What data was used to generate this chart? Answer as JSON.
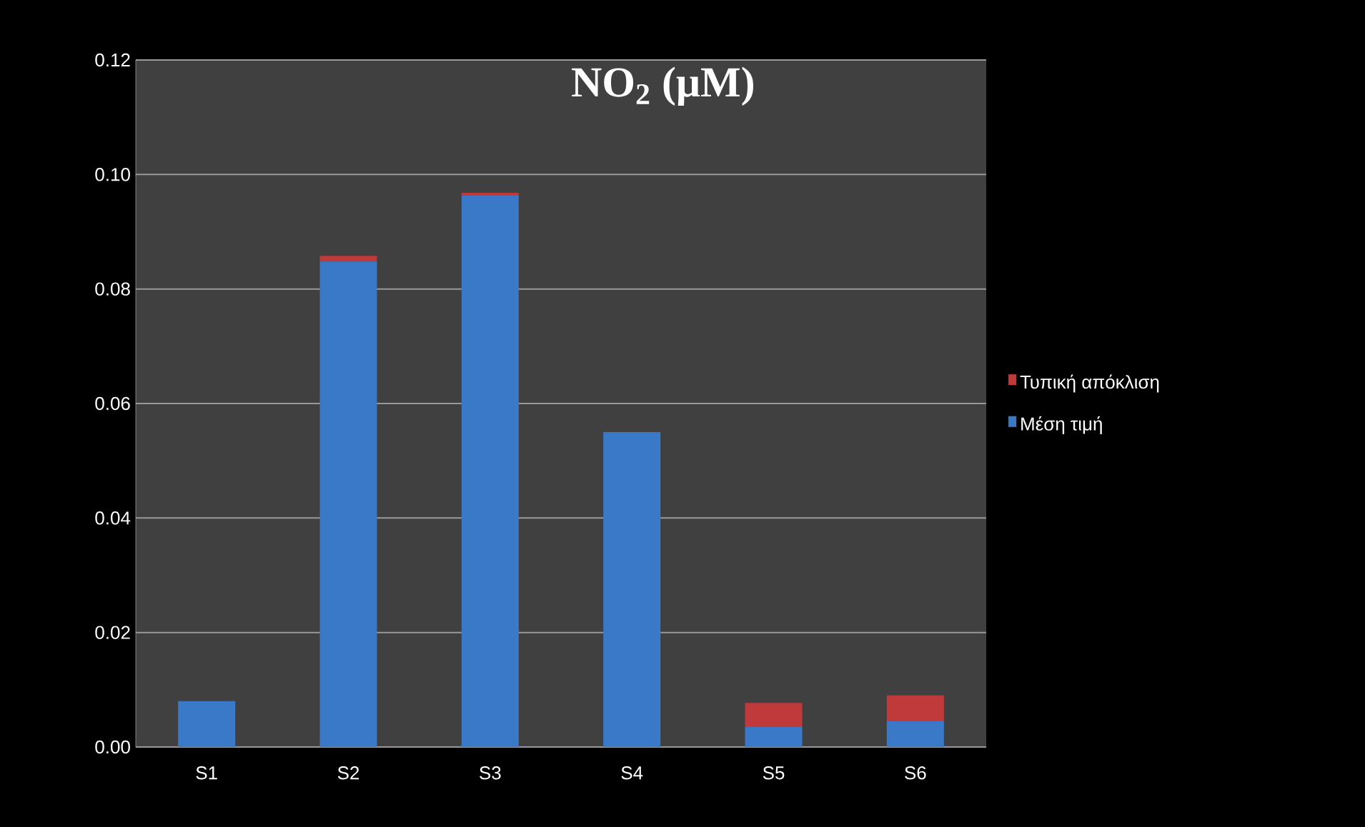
{
  "chart_data": {
    "type": "bar",
    "title": "NO$_{2}$ (μM)",
    "stacked": true,
    "grid": "y",
    "legend": "right",
    "categories": [
      "S1",
      "S2",
      "S3",
      "S4",
      "S5",
      "S6"
    ],
    "series": [
      {
        "name": "Μέση τιμή",
        "color": "#3a78c8",
        "values": [
          0.008,
          0.0848,
          0.0963,
          0.055,
          0.0035,
          0.0045
        ]
      },
      {
        "name": "Τυπική απόκλιση",
        "color": "#c0393b",
        "values": [
          0,
          0.001,
          0.0005,
          0,
          0.0042,
          0.0045
        ]
      }
    ],
    "ylim": [
      0,
      0.12
    ],
    "yticks": [
      {
        "value": 0,
        "label": "0.00"
      },
      {
        "value": 0.02,
        "label": "0.02"
      },
      {
        "value": 0.04,
        "label": "0.04"
      },
      {
        "value": 0.06,
        "label": "0.06"
      },
      {
        "value": 0.08,
        "label": "0.08"
      },
      {
        "value": 0.1,
        "label": "0.10"
      },
      {
        "value": 0.12,
        "label": "0.12"
      }
    ]
  }
}
